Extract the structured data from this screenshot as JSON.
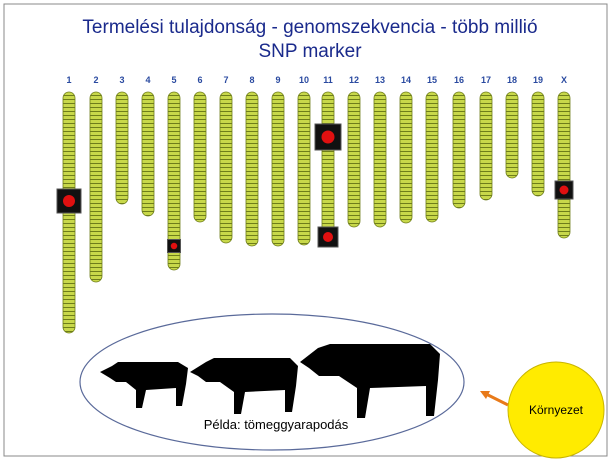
{
  "title": {
    "line1": "Termelési tulajdonság - genomszekvencia - több millió",
    "line2": "SNP marker"
  },
  "chromosomes": [
    "1",
    "2",
    "3",
    "4",
    "5",
    "6",
    "7",
    "8",
    "9",
    "10",
    "11",
    "12",
    "13",
    "14",
    "15",
    "16",
    "17",
    "18",
    "19",
    "X"
  ],
  "example": "Példa: tömeggyarapodás",
  "environment": "Környezet"
}
